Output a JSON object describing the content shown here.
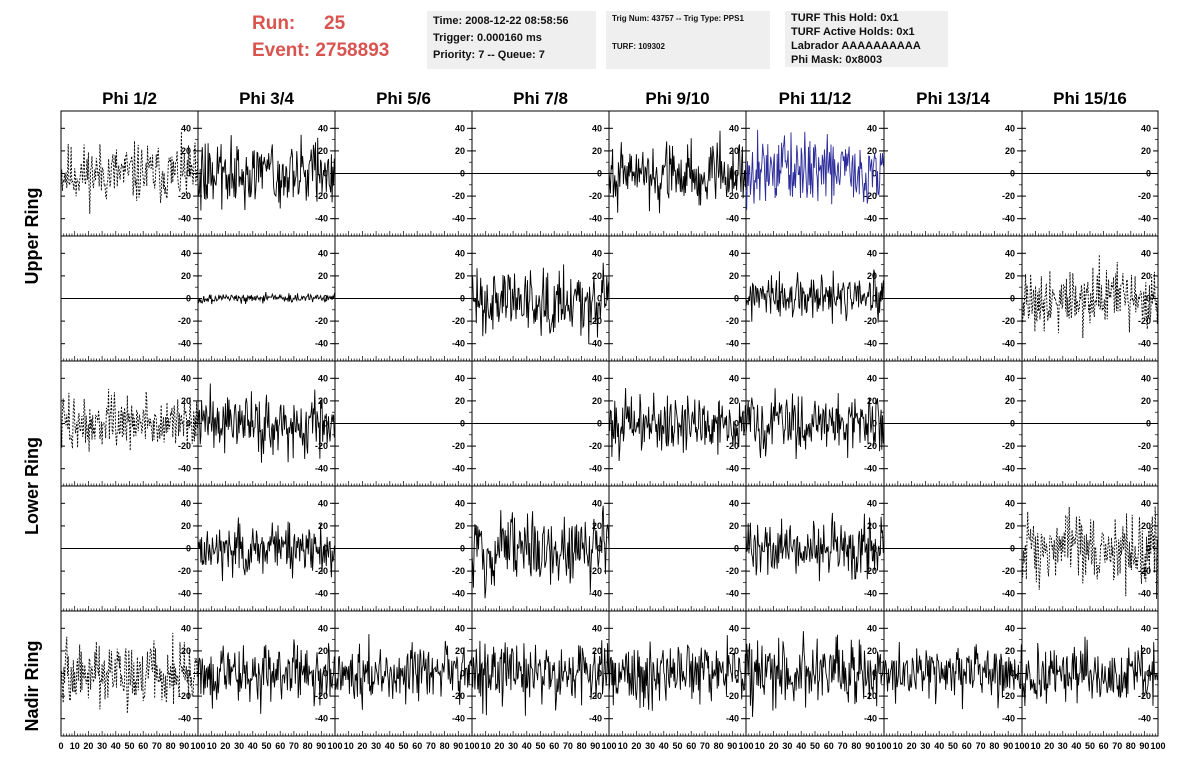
{
  "header": {
    "run_label": "Run:",
    "run_value": "25",
    "event_label": "Event:",
    "event_value": "2758893",
    "time": "Time: 2008-12-22 08:58:56",
    "trigger": "Trigger: 0.000160 ms",
    "priority": "Priority: 7 -- Queue: 7",
    "trig_num": "Trig Num: 43757 -- Trig Type: PPS1",
    "turf": "TURF: 109302",
    "turf_this_hold": "TURF This Hold: 0x1",
    "turf_active_holds": "TURF Active Holds: 0x1",
    "labrador": "Labrador AAAAAAAAAA",
    "phi_mask": "Phi Mask: 0x8003"
  },
  "chart_data": {
    "type": "line",
    "columns": [
      "Phi 1/2",
      "Phi 3/4",
      "Phi 5/6",
      "Phi 7/8",
      "Phi 9/10",
      "Phi 11/12",
      "Phi 13/14",
      "Phi 15/16"
    ],
    "ring_labels": [
      "Upper Ring",
      "Lower Ring",
      "Nadir Ring"
    ],
    "xlim": [
      0,
      100
    ],
    "ylim": [
      -50,
      50
    ],
    "xticks": [
      0,
      10,
      20,
      30,
      40,
      50,
      60,
      70,
      80,
      90,
      100
    ],
    "yticks": [
      -40,
      -20,
      0,
      20,
      40
    ],
    "colors": {
      "default": "#000000",
      "highlight": "#2b2b9a"
    },
    "panels": [
      [
        {
          "style": "dashed",
          "amplitude": 13
        },
        {
          "style": "solid",
          "amplitude": 14
        },
        {
          "style": "flat",
          "amplitude": 0
        },
        {
          "style": "flat",
          "amplitude": 0
        },
        {
          "style": "solid",
          "amplitude": 14
        },
        {
          "style": "solid",
          "amplitude": 15,
          "color": "highlight"
        },
        {
          "style": "flat",
          "amplitude": 0
        },
        {
          "style": "flat",
          "amplitude": 0
        }
      ],
      [
        {
          "style": "flat",
          "amplitude": 0
        },
        {
          "style": "solid",
          "amplitude": 2
        },
        {
          "style": "flat",
          "amplitude": 0
        },
        {
          "style": "solid",
          "amplitude": 15
        },
        {
          "style": "flat",
          "amplitude": 0
        },
        {
          "style": "solid",
          "amplitude": 10
        },
        {
          "style": "flat",
          "amplitude": 0
        },
        {
          "style": "dashed",
          "amplitude": 14
        }
      ],
      [
        {
          "style": "dashed",
          "amplitude": 12
        },
        {
          "style": "solid",
          "amplitude": 13
        },
        {
          "style": "flat",
          "amplitude": 0
        },
        {
          "style": "flat",
          "amplitude": 0
        },
        {
          "style": "solid",
          "amplitude": 13
        },
        {
          "style": "solid",
          "amplitude": 13
        },
        {
          "style": "flat",
          "amplitude": 0
        },
        {
          "style": "flat",
          "amplitude": 0
        }
      ],
      [
        {
          "style": "flat",
          "amplitude": 0
        },
        {
          "style": "solid",
          "amplitude": 11
        },
        {
          "style": "flat",
          "amplitude": 0
        },
        {
          "style": "solid",
          "amplitude": 17
        },
        {
          "style": "flat",
          "amplitude": 0
        },
        {
          "style": "solid",
          "amplitude": 13
        },
        {
          "style": "flat",
          "amplitude": 0
        },
        {
          "style": "dashed",
          "amplitude": 16
        }
      ],
      [
        {
          "style": "dashed",
          "amplitude": 14
        },
        {
          "style": "solid",
          "amplitude": 13
        },
        {
          "style": "solid",
          "amplitude": 12
        },
        {
          "style": "solid",
          "amplitude": 14
        },
        {
          "style": "solid",
          "amplitude": 13
        },
        {
          "style": "solid",
          "amplitude": 15
        },
        {
          "style": "solid",
          "amplitude": 12
        },
        {
          "style": "solid",
          "amplitude": 13
        }
      ]
    ]
  }
}
